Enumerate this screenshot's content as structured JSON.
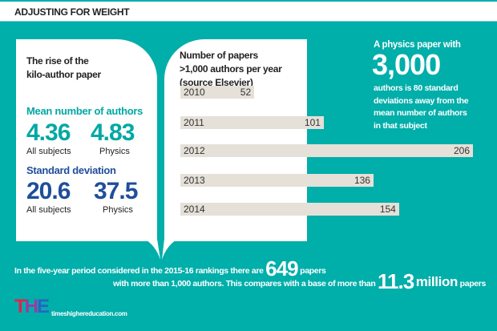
{
  "header": {
    "title": "ADJUSTING FOR WEIGHT"
  },
  "left_card": {
    "title_line1": "The rise of the",
    "title_line2": "kilo-author paper",
    "mean_label": "Mean number of authors",
    "mean_all": "4.36",
    "mean_all_label": "All subjects",
    "mean_physics": "4.83",
    "mean_physics_label": "Physics",
    "sd_label": "Standard deviation",
    "sd_all": "20.6",
    "sd_all_label": "All subjects",
    "sd_physics": "37.5",
    "sd_physics_label": "Physics"
  },
  "chart_data": {
    "type": "bar",
    "orientation": "horizontal",
    "title_line1": "Number of papers",
    "title_line2": ">1,000 authors per year",
    "title_line3": "(source Elsevier)",
    "categories": [
      "2010",
      "2011",
      "2012",
      "2013",
      "2014"
    ],
    "values": [
      52,
      101,
      206,
      136,
      154
    ],
    "xlim": [
      0,
      206
    ]
  },
  "callout": {
    "line1": "A physics paper with",
    "number": "3,000",
    "line2": "authors is 80 standard",
    "line3": "deviations away from the",
    "line4": "mean number of authors",
    "line5": "in that subject"
  },
  "footer": {
    "s1": "In the five-year period considered in the 2015-16 rankings there are",
    "n1": "649",
    "s2": "papers",
    "s3": "with more than 1,000 authors. This compares with a base of more than",
    "n2": "11.3",
    "n2b": "million",
    "s4": "papers"
  },
  "brand": {
    "logo": "THE",
    "url": "timeshighereducation.com"
  },
  "colors": {
    "teal": "#00aeaa",
    "blue": "#1f4e9a",
    "tealText": "#00a8a4"
  }
}
